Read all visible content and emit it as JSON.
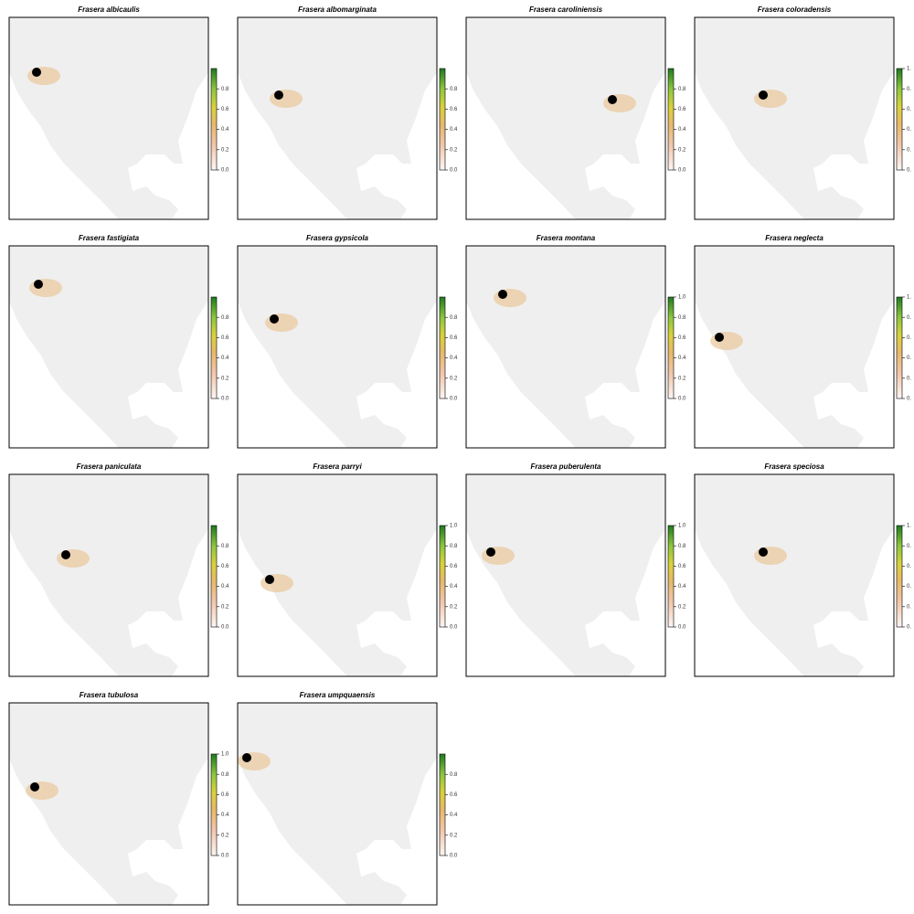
{
  "panels": [
    {
      "title": "Frasera albicaulis",
      "colorbar": {
        "lim": [
          0,
          1
        ],
        "ticks": [
          {
            "value": 0,
            "label": "0.0"
          },
          {
            "value": 0.2,
            "label": "0.2"
          },
          {
            "value": 0.4,
            "label": "0.4"
          },
          {
            "value": 0.6,
            "label": "0.6"
          },
          {
            "value": 0.8,
            "label": "0.8"
          }
        ]
      }
    },
    {
      "title": "Frasera albomarginata",
      "colorbar": {
        "lim": [
          0,
          1
        ],
        "ticks": [
          {
            "value": 0,
            "label": "0.0"
          },
          {
            "value": 0.2,
            "label": "0.2"
          },
          {
            "value": 0.4,
            "label": "0.4"
          },
          {
            "value": 0.6,
            "label": "0.6"
          },
          {
            "value": 0.8,
            "label": "0.8"
          }
        ]
      }
    },
    {
      "title": "Frasera caroliniensis",
      "colorbar": {
        "lim": [
          0,
          1
        ],
        "ticks": [
          {
            "value": 0,
            "label": "0.0"
          },
          {
            "value": 0.2,
            "label": "0.2"
          },
          {
            "value": 0.4,
            "label": "0.4"
          },
          {
            "value": 0.6,
            "label": "0.6"
          },
          {
            "value": 0.8,
            "label": "0.8"
          }
        ]
      }
    },
    {
      "title": "Frasera coloradensis",
      "colorbar": {
        "lim": [
          0,
          1
        ],
        "ticks": [
          {
            "value": 0,
            "label": "0."
          },
          {
            "value": 0.2,
            "label": "0."
          },
          {
            "value": 0.4,
            "label": "0."
          },
          {
            "value": 0.6,
            "label": "0."
          },
          {
            "value": 0.8,
            "label": "0."
          },
          {
            "value": 1,
            "label": "1."
          }
        ]
      }
    },
    {
      "title": "Frasera fastigiata",
      "colorbar": {
        "lim": [
          0,
          1
        ],
        "ticks": [
          {
            "value": 0,
            "label": "0.0"
          },
          {
            "value": 0.2,
            "label": "0.2"
          },
          {
            "value": 0.4,
            "label": "0.4"
          },
          {
            "value": 0.6,
            "label": "0.6"
          },
          {
            "value": 0.8,
            "label": "0.8"
          }
        ]
      }
    },
    {
      "title": "Frasera gypsicola",
      "colorbar": {
        "lim": [
          0,
          1
        ],
        "ticks": [
          {
            "value": 0,
            "label": "0.0"
          },
          {
            "value": 0.2,
            "label": "0.2"
          },
          {
            "value": 0.4,
            "label": "0.4"
          },
          {
            "value": 0.6,
            "label": "0.6"
          },
          {
            "value": 0.8,
            "label": "0.8"
          }
        ]
      }
    },
    {
      "title": "Frasera montana",
      "colorbar": {
        "lim": [
          0,
          1
        ],
        "ticks": [
          {
            "value": 0,
            "label": "0.0"
          },
          {
            "value": 0.2,
            "label": "0.2"
          },
          {
            "value": 0.4,
            "label": "0.4"
          },
          {
            "value": 0.6,
            "label": "0.6"
          },
          {
            "value": 0.8,
            "label": "0.8"
          },
          {
            "value": 1,
            "label": "1.0"
          }
        ]
      }
    },
    {
      "title": "Frasera neglecta",
      "colorbar": {
        "lim": [
          0,
          1
        ],
        "ticks": [
          {
            "value": 0,
            "label": "0."
          },
          {
            "value": 0.2,
            "label": "0."
          },
          {
            "value": 0.4,
            "label": "0."
          },
          {
            "value": 0.6,
            "label": "0."
          },
          {
            "value": 0.8,
            "label": "0."
          },
          {
            "value": 1,
            "label": "1."
          }
        ]
      }
    },
    {
      "title": "Frasera paniculata",
      "colorbar": {
        "lim": [
          0,
          1
        ],
        "ticks": [
          {
            "value": 0,
            "label": "0.0"
          },
          {
            "value": 0.2,
            "label": "0.2"
          },
          {
            "value": 0.4,
            "label": "0.4"
          },
          {
            "value": 0.6,
            "label": "0.6"
          },
          {
            "value": 0.8,
            "label": "0.8"
          }
        ]
      }
    },
    {
      "title": "Frasera parryi",
      "colorbar": {
        "lim": [
          0,
          1
        ],
        "ticks": [
          {
            "value": 0,
            "label": "0.0"
          },
          {
            "value": 0.2,
            "label": "0.2"
          },
          {
            "value": 0.4,
            "label": "0.4"
          },
          {
            "value": 0.6,
            "label": "0.6"
          },
          {
            "value": 0.8,
            "label": "0.8"
          },
          {
            "value": 1,
            "label": "1.0"
          }
        ]
      }
    },
    {
      "title": "Frasera puberulenta",
      "colorbar": {
        "lim": [
          0,
          1
        ],
        "ticks": [
          {
            "value": 0,
            "label": "0.0"
          },
          {
            "value": 0.2,
            "label": "0.2"
          },
          {
            "value": 0.4,
            "label": "0.4"
          },
          {
            "value": 0.6,
            "label": "0.6"
          },
          {
            "value": 0.8,
            "label": "0.8"
          },
          {
            "value": 1,
            "label": "1.0"
          }
        ]
      }
    },
    {
      "title": "Frasera speciosa",
      "colorbar": {
        "lim": [
          0,
          1
        ],
        "ticks": [
          {
            "value": 0,
            "label": "0."
          },
          {
            "value": 0.2,
            "label": "0."
          },
          {
            "value": 0.4,
            "label": "0."
          },
          {
            "value": 0.6,
            "label": "0."
          },
          {
            "value": 0.8,
            "label": "0."
          },
          {
            "value": 1,
            "label": "1."
          }
        ]
      }
    },
    {
      "title": "Frasera tubulosa",
      "colorbar": {
        "lim": [
          0,
          1
        ],
        "ticks": [
          {
            "value": 0,
            "label": "0.0"
          },
          {
            "value": 0.2,
            "label": "0.2"
          },
          {
            "value": 0.4,
            "label": "0.4"
          },
          {
            "value": 0.6,
            "label": "0.6"
          },
          {
            "value": 0.8,
            "label": "0.8"
          },
          {
            "value": 1,
            "label": "1.0"
          }
        ]
      }
    },
    {
      "title": "Frasera umpquaensis",
      "colorbar": {
        "lim": [
          0,
          1
        ],
        "ticks": [
          {
            "value": 0,
            "label": "0.0"
          },
          {
            "value": 0.2,
            "label": "0.2"
          },
          {
            "value": 0.4,
            "label": "0.4"
          },
          {
            "value": 0.6,
            "label": "0.6"
          },
          {
            "value": 0.8,
            "label": "0.8"
          }
        ]
      }
    }
  ]
}
